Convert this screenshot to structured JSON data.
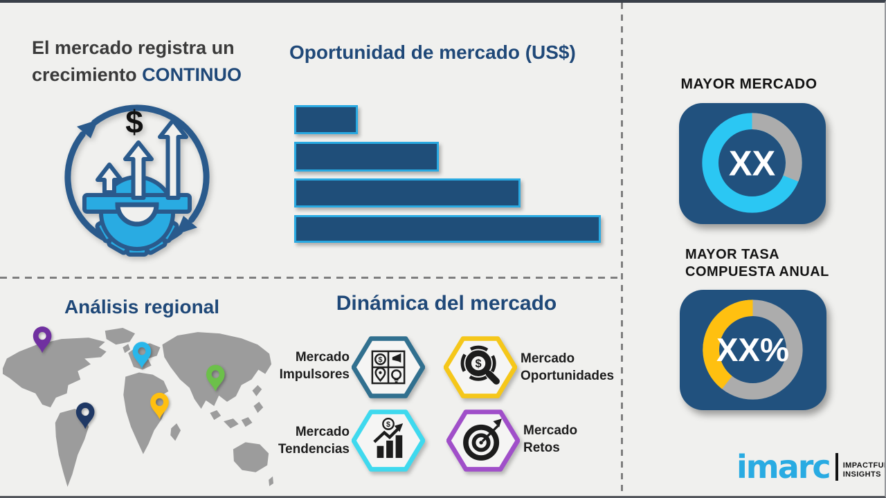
{
  "growth": {
    "heading_plain": "El mercado registra un crecimiento ",
    "heading_highlight": "CONTINUO",
    "dollar_symbol": "$"
  },
  "opportunity": {
    "title": "Oportunidad de mercado (US$)"
  },
  "right_column": {
    "largest_market": {
      "title": "MAYOR MERCADO",
      "value_label": "XX"
    },
    "cagr": {
      "title_line1": "MAYOR TASA",
      "title_line2": "COMPUESTA ANUAL",
      "value_label": "XX%"
    }
  },
  "regional": {
    "title": "Análisis regional",
    "pins": [
      {
        "color": "#7030A0"
      },
      {
        "color": "#29B7EA"
      },
      {
        "color": "#6CC04A"
      },
      {
        "color": "#FFC010"
      },
      {
        "color": "#1F3864"
      }
    ]
  },
  "dynamics": {
    "title": "Dinámica del mercado",
    "items": [
      {
        "line1": "Mercado",
        "line2": "Impulsores",
        "accent_color": "#31708F",
        "icon": "puzzle-icon"
      },
      {
        "line1": "Mercado",
        "line2": "Oportunidades",
        "accent_color": "#F5C71A",
        "icon": "magnifier-dollar-icon"
      },
      {
        "line1": "Mercado",
        "line2": "Tendencias",
        "accent_color": "#3FD9EE",
        "icon": "trend-chart-icon"
      },
      {
        "line1": "Mercado",
        "line2": "Retos",
        "accent_color": "#A04FC9",
        "icon": "dartboard-icon"
      }
    ]
  },
  "logo": {
    "brand": "imarc",
    "tagline_line1": "IMPACTFUL",
    "tagline_line2": "INSIGHTS"
  },
  "colors": {
    "background": "#F0F0EE",
    "heading_blue": "#1F4878",
    "bar_fill": "#1F4E79",
    "bar_border": "#29A9E1",
    "card_blue": "#21517E",
    "accent_cyan": "#2BC7F3",
    "accent_yellow": "#FFC010",
    "neutral_gray": "#ACACAC",
    "map_gray": "#9C9C9C",
    "brand_blue": "#29ABE2"
  },
  "chart_data": [
    {
      "type": "bar",
      "orientation": "horizontal",
      "title": "Oportunidad de mercado (US$)",
      "categories": [
        "",
        "",
        "",
        ""
      ],
      "values": [
        92,
        209,
        327,
        443
      ],
      "value_unit": "relative-px",
      "note": "bars unlabeled; widths relative 1 : 2.3 : 3.6 : 4.8",
      "xlabel": "",
      "ylabel": "",
      "grid": false,
      "legend": false
    },
    {
      "type": "pie",
      "subtype": "donut",
      "title": "MAYOR MERCADO",
      "center_label": "XX",
      "segments": [
        {
          "color": "#2BC7F3",
          "pct": 69
        },
        {
          "color": "#ACACAC",
          "pct": 31
        }
      ],
      "accent_arc": {
        "start_deg": 0,
        "end_deg": 112
      }
    },
    {
      "type": "pie",
      "subtype": "donut",
      "title": "MAYOR TASA COMPUESTA ANUAL",
      "center_label": "XX%",
      "segments": [
        {
          "color": "#FFC010",
          "pct": 39
        },
        {
          "color": "#ACACAC",
          "pct": 61
        }
      ],
      "accent_arc": {
        "start_deg": 218,
        "end_deg": 360
      }
    }
  ]
}
